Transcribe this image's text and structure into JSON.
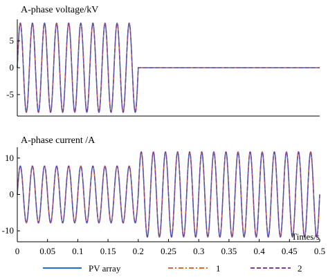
{
  "chart_data": [
    {
      "type": "line",
      "title": "A-phase voltage/kV",
      "xlabel": "",
      "ylabel": "",
      "xlim": [
        0,
        0.5
      ],
      "ylim": [
        -9,
        9
      ],
      "yticks": [
        5,
        0,
        -5
      ],
      "yticklabels": [
        "5",
        "0",
        "-5"
      ],
      "grid": false,
      "signal": [
        {
          "t_start": 0,
          "t_end": 0.2,
          "frequency_hz": 50,
          "amplitude": 8.3
        },
        {
          "t_start": 0.2,
          "t_end": 0.5,
          "frequency_hz": 50,
          "amplitude": 0
        }
      ],
      "series": [
        {
          "name": "PV array",
          "color": "#1f6fd1",
          "dash": "solid"
        },
        {
          "name": "1",
          "color": "#e0662a",
          "dash": "dashdot"
        },
        {
          "name": "2",
          "color": "#7a3aa0",
          "dash": "dashed"
        }
      ]
    },
    {
      "type": "line",
      "title": "A-phase current /A",
      "xlabel": "Times/s",
      "ylabel": "",
      "xlim": [
        0,
        0.5
      ],
      "ylim": [
        -13,
        13
      ],
      "xticks": [
        0,
        0.05,
        0.1,
        0.15,
        0.2,
        0.25,
        0.3,
        0.35,
        0.4,
        0.45,
        0.5
      ],
      "xticklabels": [
        "0",
        "0.05",
        "0.1",
        "0.15",
        "0.2",
        "0.25",
        "0.3",
        "0.35",
        "0.4",
        "0.45",
        "0.5"
      ],
      "yticks": [
        10,
        0,
        -10
      ],
      "yticklabels": [
        "10",
        "0",
        "-10"
      ],
      "grid": false,
      "signal": [
        {
          "t_start": 0,
          "t_end": 0.2,
          "frequency_hz": 50,
          "amplitude": 7.8
        },
        {
          "t_start": 0.2,
          "t_end": 0.5,
          "frequency_hz": 50,
          "amplitude": 11.7
        }
      ],
      "series": [
        {
          "name": "PV array",
          "color": "#1f6fd1",
          "dash": "solid"
        },
        {
          "name": "1",
          "color": "#e0662a",
          "dash": "dashdot"
        },
        {
          "name": "2",
          "color": "#7a3aa0",
          "dash": "dashed"
        }
      ]
    }
  ],
  "legend": {
    "placement": "bottom",
    "items": [
      {
        "label": "PV array",
        "color": "#1f6fd1",
        "dash": "solid"
      },
      {
        "label": "1",
        "color": "#e0662a",
        "dash": "dashdot"
      },
      {
        "label": "2",
        "color": "#7a3aa0",
        "dash": "dashed"
      }
    ]
  }
}
